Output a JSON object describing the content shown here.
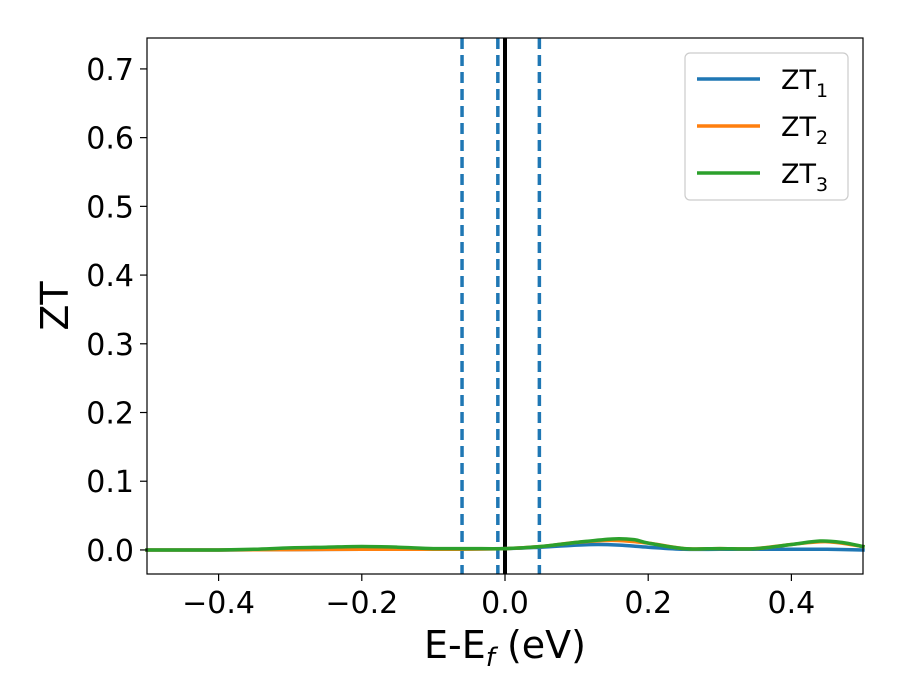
{
  "chart_data": {
    "type": "line",
    "title": "",
    "xlabel": {
      "main": "E-E",
      "sub": "f",
      "suffix": " (eV)"
    },
    "ylabel": "ZT",
    "xlim": [
      -0.5,
      0.5
    ],
    "ylim": [
      -0.035,
      0.745
    ],
    "xticks": [
      -0.4,
      -0.2,
      0.0,
      0.2,
      0.4
    ],
    "xtick_labels": [
      "−0.4",
      "−0.2",
      "0.0",
      "0.2",
      "0.4"
    ],
    "yticks": [
      0.0,
      0.1,
      0.2,
      0.3,
      0.4,
      0.5,
      0.6,
      0.7
    ],
    "ytick_labels": [
      "0.0",
      "0.1",
      "0.2",
      "0.3",
      "0.4",
      "0.5",
      "0.6",
      "0.7"
    ],
    "grid": false,
    "legend_position": "top-right",
    "vlines": [
      {
        "x": -0.06,
        "style": "dashed",
        "color": "#1f77b4"
      },
      {
        "x": -0.01,
        "style": "dashed",
        "color": "#1f77b4"
      },
      {
        "x": 0.0,
        "style": "solid",
        "color": "#000000"
      },
      {
        "x": 0.048,
        "style": "dashed",
        "color": "#1f77b4"
      }
    ],
    "series": [
      {
        "name": "ZT",
        "name_sub": "1",
        "color": "#1f77b4",
        "x": [
          -0.5,
          -0.4,
          -0.3,
          -0.2,
          -0.1,
          0.0,
          0.05,
          0.1,
          0.13,
          0.16,
          0.2,
          0.25,
          0.3,
          0.35,
          0.4,
          0.45,
          0.5
        ],
        "y": [
          0.0,
          0.0,
          0.0005,
          0.001,
          0.001,
          0.002,
          0.004,
          0.007,
          0.008,
          0.007,
          0.004,
          0.001,
          0.001,
          0.001,
          0.001,
          0.001,
          0.0
        ]
      },
      {
        "name": "ZT",
        "name_sub": "2",
        "color": "#ff7f0e",
        "x": [
          -0.5,
          -0.4,
          -0.3,
          -0.2,
          -0.1,
          0.0,
          0.05,
          0.1,
          0.15,
          0.2,
          0.25,
          0.3,
          0.35,
          0.4,
          0.45,
          0.5
        ],
        "y": [
          0.0,
          0.0,
          0.0005,
          0.001,
          0.001,
          0.002,
          0.005,
          0.011,
          0.014,
          0.01,
          0.002,
          0.002,
          0.002,
          0.008,
          0.012,
          0.005
        ]
      },
      {
        "name": "ZT",
        "name_sub": "3",
        "color": "#2ca02c",
        "x": [
          -0.5,
          -0.45,
          -0.4,
          -0.35,
          -0.3,
          -0.25,
          -0.2,
          -0.15,
          -0.1,
          -0.05,
          0.0,
          0.05,
          0.1,
          0.15,
          0.18,
          0.2,
          0.25,
          0.3,
          0.35,
          0.4,
          0.44,
          0.47,
          0.5
        ],
        "y": [
          0.0,
          0.0,
          0.0,
          0.001,
          0.003,
          0.004,
          0.005,
          0.004,
          0.002,
          0.002,
          0.002,
          0.005,
          0.011,
          0.016,
          0.015,
          0.01,
          0.002,
          0.002,
          0.002,
          0.008,
          0.013,
          0.011,
          0.005
        ]
      }
    ]
  }
}
